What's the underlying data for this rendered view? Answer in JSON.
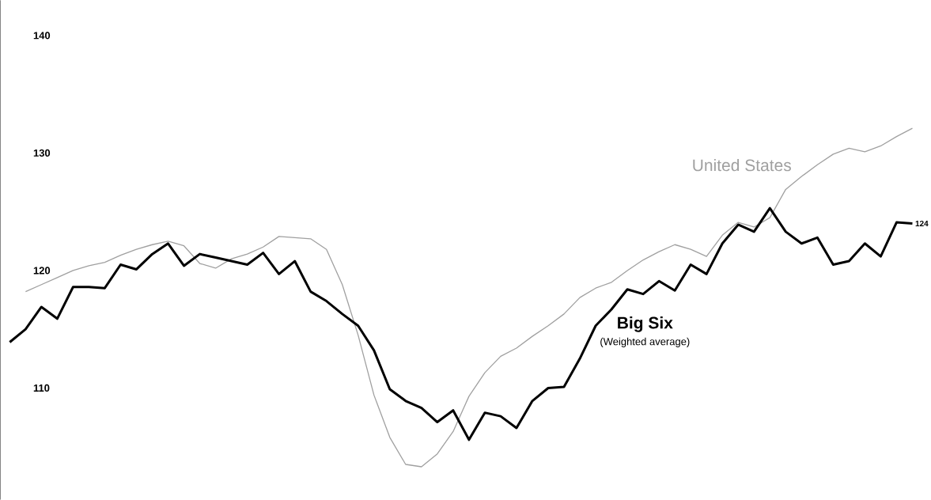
{
  "chart_data": {
    "type": "line",
    "ylim": [
      100.5,
      143
    ],
    "yticks": [
      110,
      120,
      130,
      140
    ],
    "tick_labels": "y",
    "categories": [
      null,
      null,
      null,
      null,
      null,
      null,
      null,
      null,
      null,
      null,
      null,
      null,
      null,
      null,
      null,
      null,
      null,
      null,
      null,
      null,
      null,
      null,
      null,
      null,
      null,
      null,
      null,
      null,
      null,
      null,
      null,
      null,
      null,
      null,
      null,
      null,
      null,
      null,
      null,
      null,
      null,
      null,
      null,
      null,
      null,
      null,
      null,
      null,
      null,
      null,
      null,
      null,
      null,
      null,
      null,
      null,
      null,
      null
    ],
    "annotations": [
      "(Weighted average)"
    ],
    "series": [
      {
        "name": "United States",
        "color": "#a0a0a0",
        "values": [
          null,
          118.2,
          118.8,
          119.4,
          120.0,
          120.4,
          120.7,
          121.3,
          121.8,
          122.2,
          122.5,
          122.1,
          120.6,
          120.2,
          121.0,
          121.4,
          122.0,
          122.9,
          122.8,
          122.7,
          121.8,
          118.8,
          114.5,
          109.4,
          105.8,
          103.5,
          103.3,
          104.4,
          106.3,
          109.3,
          111.3,
          112.7,
          113.4,
          114.4,
          115.3,
          116.3,
          117.7,
          118.5,
          119.0,
          120.0,
          120.9,
          121.6,
          122.2,
          121.8,
          121.2,
          123.0,
          124.1,
          123.7,
          124.5,
          126.9,
          128.0,
          129.0,
          129.9,
          130.4,
          130.1,
          130.6,
          131.4,
          132.1
        ]
      },
      {
        "name": "Big Six",
        "color": "#000000",
        "values": [
          113.9,
          115.0,
          116.9,
          115.9,
          118.6,
          118.6,
          118.5,
          120.5,
          120.1,
          121.4,
          122.3,
          120.4,
          121.4,
          121.1,
          120.8,
          120.5,
          121.5,
          119.7,
          120.8,
          118.2,
          117.4,
          116.3,
          115.3,
          113.2,
          109.9,
          108.9,
          108.3,
          107.1,
          108.1,
          105.6,
          107.9,
          107.6,
          106.6,
          108.9,
          110.0,
          110.1,
          112.5,
          115.3,
          116.7,
          118.4,
          118.0,
          119.1,
          118.3,
          120.5,
          119.7,
          122.3,
          123.9,
          123.3,
          125.3,
          123.3,
          122.3,
          122.8,
          120.5,
          120.8,
          122.3,
          121.2,
          124.1,
          124
        ],
        "value_labels": [
          null,
          null,
          null,
          null,
          null,
          null,
          null,
          null,
          null,
          null,
          null,
          null,
          null,
          null,
          null,
          null,
          null,
          null,
          null,
          null,
          null,
          null,
          null,
          null,
          null,
          null,
          null,
          null,
          null,
          null,
          null,
          null,
          null,
          null,
          null,
          null,
          null,
          null,
          null,
          null,
          null,
          null,
          null,
          null,
          null,
          null,
          null,
          null,
          null,
          null,
          null,
          null,
          null,
          null,
          null,
          null,
          null,
          "124"
        ]
      }
    ]
  }
}
